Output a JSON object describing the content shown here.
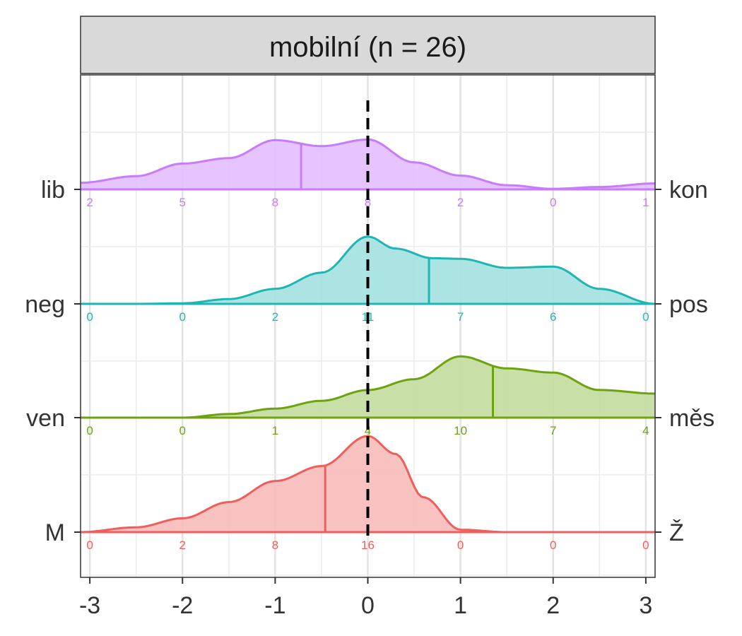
{
  "chart_data": {
    "type": "ridgeline",
    "panel_title": "mobilní (n = 26)",
    "xlim": [
      -3.1,
      3.1
    ],
    "x_ticks": [
      -3,
      -2,
      -1,
      0,
      1,
      2,
      3
    ],
    "x_tick_labels": [
      "-3",
      "-2",
      "-1",
      "0",
      "1",
      "2",
      "3"
    ],
    "reference_line_x": 0,
    "grid": true,
    "count_positions": [
      -3,
      -2,
      -1,
      0,
      1,
      2,
      3
    ],
    "series": [
      {
        "left_label": "lib",
        "right_label": "kon",
        "color": "#C77CFF",
        "fill": "#E2BEFF",
        "mean": -0.72,
        "counts": [
          2,
          5,
          8,
          8,
          2,
          0,
          1
        ],
        "density_x": [
          -3.1,
          -2.5,
          -2.0,
          -1.5,
          -1.0,
          -0.5,
          0.0,
          0.5,
          1.0,
          1.5,
          2.0,
          2.5,
          3.1
        ],
        "density_y": [
          0.11,
          0.22,
          0.43,
          0.52,
          0.82,
          0.72,
          0.83,
          0.45,
          0.23,
          0.07,
          0.01,
          0.04,
          0.1
        ]
      },
      {
        "left_label": "neg",
        "right_label": "pos",
        "color": "#1FB5B5",
        "fill": "#A3E1E1",
        "mean": 0.66,
        "counts": [
          0,
          0,
          2,
          11,
          7,
          6,
          0
        ],
        "density_x": [
          -3.1,
          -2.5,
          -2.0,
          -1.5,
          -1.0,
          -0.5,
          0.0,
          0.3,
          0.7,
          1.0,
          1.5,
          2.0,
          2.5,
          3.1
        ],
        "density_y": [
          0.0,
          0.0,
          0.01,
          0.08,
          0.25,
          0.52,
          1.12,
          0.92,
          0.76,
          0.75,
          0.6,
          0.62,
          0.25,
          0.0
        ]
      },
      {
        "left_label": "ven",
        "right_label": "měs",
        "color": "#6DA30F",
        "fill": "#C3DB9E",
        "mean": 1.35,
        "counts": [
          0,
          0,
          1,
          4,
          10,
          7,
          4
        ],
        "density_x": [
          -3.1,
          -2.5,
          -2.0,
          -1.5,
          -1.0,
          -0.5,
          0.0,
          0.5,
          1.0,
          1.5,
          2.0,
          2.5,
          3.1
        ],
        "density_y": [
          0.0,
          0.0,
          0.0,
          0.06,
          0.15,
          0.28,
          0.46,
          0.64,
          1.02,
          0.82,
          0.75,
          0.46,
          0.4
        ]
      },
      {
        "left_label": "M",
        "right_label": "Ž",
        "color": "#EE5F5B",
        "fill": "#F7BBB9",
        "mean": -0.46,
        "counts": [
          0,
          2,
          8,
          16,
          0,
          0,
          0
        ],
        "density_x": [
          -3.1,
          -2.5,
          -2.0,
          -1.5,
          -1.0,
          -0.5,
          0.0,
          0.3,
          0.6,
          1.0,
          1.5,
          2.0,
          2.5,
          3.1
        ],
        "density_y": [
          0.0,
          0.08,
          0.23,
          0.5,
          0.85,
          1.1,
          1.6,
          1.3,
          0.58,
          0.04,
          0.0,
          0.0,
          0.0,
          0.0
        ]
      }
    ]
  }
}
